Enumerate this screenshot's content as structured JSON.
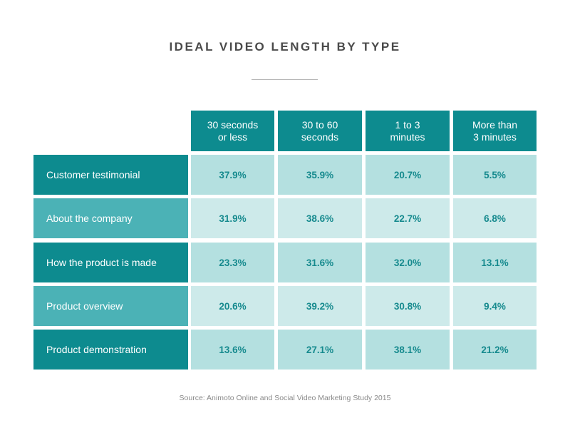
{
  "chart_data": {
    "type": "table",
    "title": "IDEAL VIDEO LENGTH BY TYPE",
    "columns": [
      "30 seconds\nor less",
      "30 to 60\nseconds",
      "1 to 3\nminutes",
      "More than\n3 minutes"
    ],
    "rows": [
      {
        "label": "Customer testimonial",
        "values": [
          "37.9%",
          "35.9%",
          "20.7%",
          "5.5%"
        ]
      },
      {
        "label": "About the company",
        "values": [
          "31.9%",
          "38.6%",
          "22.7%",
          "6.8%"
        ]
      },
      {
        "label": "How the product is made",
        "values": [
          "23.3%",
          "31.6%",
          "32.0%",
          "13.1%"
        ]
      },
      {
        "label": "Product overview",
        "values": [
          "20.6%",
          "39.2%",
          "30.8%",
          "9.4%"
        ]
      },
      {
        "label": "Product demonstration",
        "values": [
          "13.6%",
          "27.1%",
          "38.1%",
          "21.2%"
        ]
      }
    ],
    "source": "Source: Animoto Online and Social Video Marketing Study 2015"
  },
  "colors": {
    "header_teal": "#0d8b8f",
    "row_light_teal": "#4bb2b6",
    "cell_dark": "#b4e0e0",
    "cell_light": "#cdeaea",
    "value_text": "#168a8e"
  }
}
